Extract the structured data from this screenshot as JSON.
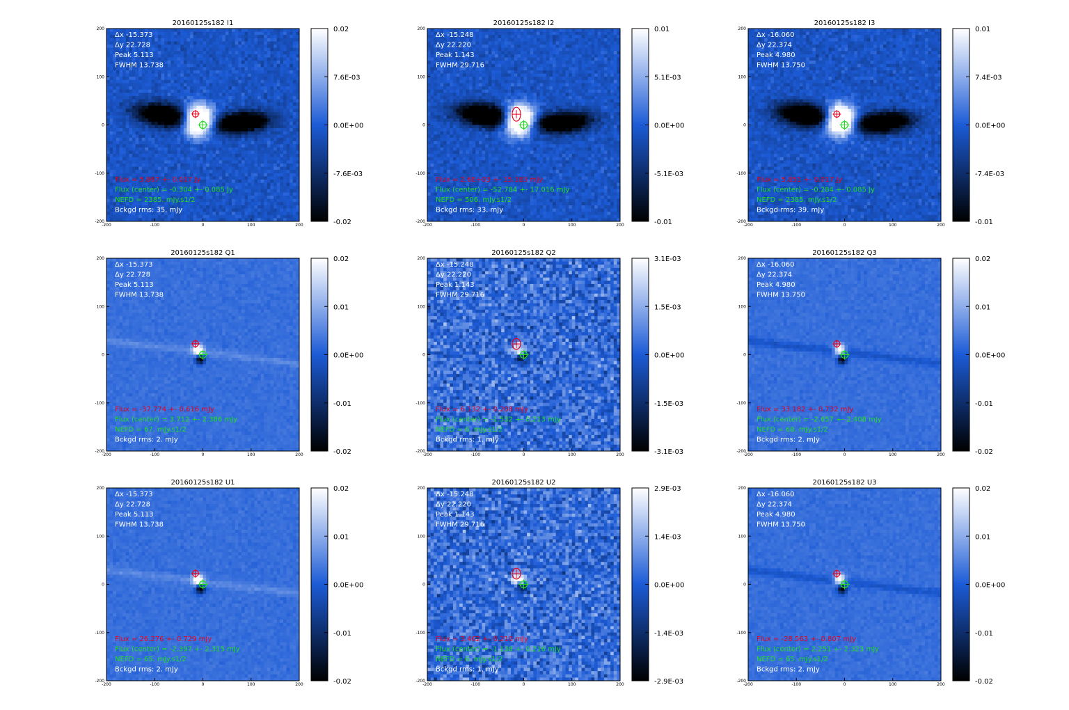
{
  "colormap": {
    "low": "#000000",
    "mid": "#1c5bd6",
    "high": "#ffffff"
  },
  "overlay_colors": {
    "label": "#ffffff",
    "flux": "#e8001c",
    "center": "#22dd22"
  },
  "axis": {
    "xticks": [
      "-200",
      "-100",
      "0",
      "100",
      "200"
    ],
    "yticks": [
      "200",
      "100",
      "0",
      "-100",
      "-200"
    ]
  },
  "chart_data": [
    {
      "type": "heatmap",
      "title": "20160125s182 I1",
      "xlim": [
        -200,
        200
      ],
      "ylim": [
        -200,
        200
      ],
      "colorbar": {
        "ticks": [
          "0.02",
          "7.6E-03",
          "0.0E+00",
          "-7.6E-03",
          "-0.02"
        ]
      },
      "stats": {
        "dx": "Δx  -15.373",
        "dy": "Δy  22.728",
        "peak": "Peak  5.113",
        "fwhm": "FWHM  13.738"
      },
      "flux": "Flux = 5.867 +- 0.017 Jy",
      "flux_center": "Flux (center) = -0.304 +- 0.085 Jy",
      "nefd": "NEFD      =   2385. mJy.s1/2",
      "bckgd": "Bckgd rms:   35. mJy",
      "pattern": "lobes",
      "red_marker": {
        "x": -15.4,
        "y": 22.7,
        "rx": 8,
        "ry": 8
      },
      "green_marker": {
        "x": 0,
        "y": 0
      }
    },
    {
      "type": "heatmap",
      "title": "20160125s182 I2",
      "xlim": [
        -200,
        200
      ],
      "ylim": [
        -200,
        200
      ],
      "colorbar": {
        "ticks": [
          "0.01",
          "5.1E-03",
          "0.0E+00",
          "-5.1E-03",
          "-0.01"
        ]
      },
      "stats": {
        "dx": "Δx  -15.248",
        "dy": "Δy  22.220",
        "peak": "Peak  1.143",
        "fwhm": "FWHM  29.716"
      },
      "flux": "Flux = 2.6E+03 +- 15.183 mJy",
      "flux_center": "Flux (center) = -52.784 +- 17.016 mJy",
      "nefd": "NEFD      =   506. mJy.s1/2",
      "bckgd": "Bckgd rms:   33. mJy",
      "pattern": "lobes",
      "red_marker": {
        "x": -15.2,
        "y": 22.2,
        "rx": 11,
        "ry": 18
      },
      "green_marker": {
        "x": 0,
        "y": 0
      }
    },
    {
      "type": "heatmap",
      "title": "20160125s182 I3",
      "xlim": [
        -200,
        200
      ],
      "ylim": [
        -200,
        200
      ],
      "colorbar": {
        "ticks": [
          "0.01",
          "7.4E-03",
          "0.0E+00",
          "-7.4E-03",
          "-0.01"
        ]
      },
      "stats": {
        "dx": "Δx  -16.060",
        "dy": "Δy  22.374",
        "peak": "Peak  4.980",
        "fwhm": "FWHM  13.750"
      },
      "flux": "Flux = 5.851 +- 0.017 Jy",
      "flux_center": "Flux (center) = -0.284 +- 0.085 Jy",
      "nefd": "NEFD      =   2385. mJy.s1/2",
      "bckgd": "Bckgd rms:   39. mJy",
      "pattern": "lobes",
      "red_marker": {
        "x": -16.1,
        "y": 22.4,
        "rx": 8,
        "ry": 8
      },
      "green_marker": {
        "x": 0,
        "y": 0
      }
    },
    {
      "type": "heatmap",
      "title": "20160125s182 Q1",
      "xlim": [
        -200,
        200
      ],
      "ylim": [
        -200,
        200
      ],
      "colorbar": {
        "ticks": [
          "0.02",
          "0.01",
          "0.0E+00",
          "-0.01",
          "-0.02"
        ]
      },
      "stats": {
        "dx": "Δx  -15.373",
        "dy": "Δy  22.728",
        "peak": "Peak  5.113",
        "fwhm": "FWHM  13.738"
      },
      "flux": "Flux = -37.774 +- 0.616 mJy",
      "flux_center": "Flux (center) = 3.712 +- 2.386 mJy",
      "nefd": "NEFD      =   67. mJy.s1/2",
      "bckgd": "Bckgd rms:   2. mJy",
      "pattern": "streak-light",
      "red_marker": {
        "x": -15.4,
        "y": 22.7,
        "rx": 8,
        "ry": 8
      },
      "green_marker": {
        "x": 0,
        "y": 0
      }
    },
    {
      "type": "heatmap",
      "title": "20160125s182 Q2",
      "xlim": [
        -200,
        200
      ],
      "ylim": [
        -200,
        200
      ],
      "colorbar": {
        "ticks": [
          "3.1E-03",
          "1.5E-03",
          "0.0E+00",
          "-1.5E-03",
          "-3.1E-03"
        ]
      },
      "stats": {
        "dx": "Δx  -15.248",
        "dy": "Δy  22.220",
        "peak": "Peak  1.143",
        "fwhm": "FWHM  29.716"
      },
      "flux": "Flux = 6.132 +- 0.208 mJy",
      "flux_center": "Flux (center) = -1.532 +- 0.213 mJy",
      "nefd": "NEFD      =   6. mJy.s1/2",
      "bckgd": "Bckgd rms:   1. mJy",
      "pattern": "noisy",
      "red_marker": {
        "x": -15.2,
        "y": 22.2,
        "rx": 11,
        "ry": 14
      },
      "green_marker": {
        "x": 0,
        "y": 0
      }
    },
    {
      "type": "heatmap",
      "title": "20160125s182 Q3",
      "xlim": [
        -200,
        200
      ],
      "ylim": [
        -200,
        200
      ],
      "colorbar": {
        "ticks": [
          "0.02",
          "0.01",
          "0.0E+00",
          "-0.01",
          "-0.02"
        ]
      },
      "stats": {
        "dx": "Δx  -16.060",
        "dy": "Δy  22.374",
        "peak": "Peak  4.980",
        "fwhm": "FWHM  13.750"
      },
      "flux": "Flux = 33.182 +- 0.732 mJy",
      "flux_center": "Flux (center) = -2.657 +- 2.408 mJy",
      "nefd": "NEFD      =   68. mJy.s1/2",
      "bckgd": "Bckgd rms:   2. mJy",
      "pattern": "streak-dark",
      "red_marker": {
        "x": -16.1,
        "y": 22.4,
        "rx": 8,
        "ry": 8
      },
      "green_marker": {
        "x": 0,
        "y": 0
      }
    },
    {
      "type": "heatmap",
      "title": "20160125s182 U1",
      "xlim": [
        -200,
        200
      ],
      "ylim": [
        -200,
        200
      ],
      "colorbar": {
        "ticks": [
          "0.02",
          "0.01",
          "0.0E+00",
          "-0.01",
          "-0.02"
        ]
      },
      "stats": {
        "dx": "Δx  -15.373",
        "dy": "Δy  22.728",
        "peak": "Peak  5.113",
        "fwhm": "FWHM  13.738"
      },
      "flux": "Flux = 26.276 +- 0.729 mJy",
      "flux_center": "Flux (center) = -2.397 +- 2.315 mJy",
      "nefd": "NEFD      =   65. mJy.s1/2",
      "bckgd": "Bckgd rms:   2. mJy",
      "pattern": "streak-light",
      "red_marker": {
        "x": -15.4,
        "y": 22.7,
        "rx": 8,
        "ry": 8
      },
      "green_marker": {
        "x": 0,
        "y": 0
      }
    },
    {
      "type": "heatmap",
      "title": "20160125s182 U2",
      "xlim": [
        -200,
        200
      ],
      "ylim": [
        -200,
        200
      ],
      "colorbar": {
        "ticks": [
          "2.9E-03",
          "1.4E-03",
          "0.0E+00",
          "-1.4E-03",
          "-2.9E-03"
        ]
      },
      "stats": {
        "dx": "Δx  -15.248",
        "dy": "Δy  22.220",
        "peak": "Peak  1.143",
        "fwhm": "FWHM  29.716"
      },
      "flux": "Flux = 3.462 +- 0.210 mJy",
      "flux_center": "Flux (center) = -1.138 +- 0.216 mJy",
      "nefd": "NEFD      =   6. mJy.s1/2",
      "bckgd": "Bckgd rms:   1. mJy",
      "pattern": "noisy",
      "red_marker": {
        "x": -15.2,
        "y": 22.2,
        "rx": 11,
        "ry": 14
      },
      "green_marker": {
        "x": 0,
        "y": 0
      }
    },
    {
      "type": "heatmap",
      "title": "20160125s182 U3",
      "xlim": [
        -200,
        200
      ],
      "ylim": [
        -200,
        200
      ],
      "colorbar": {
        "ticks": [
          "0.02",
          "0.01",
          "0.0E+00",
          "-0.01",
          "-0.02"
        ]
      },
      "stats": {
        "dx": "Δx  -16.060",
        "dy": "Δy  22.374",
        "peak": "Peak  4.980",
        "fwhm": "FWHM  13.750"
      },
      "flux": "Flux = -28.563 +- 0.807 mJy",
      "flux_center": "Flux (center) = 2.251 +- 2.323 mJy",
      "nefd": "NEFD      =   65. mJy.s1/2",
      "bckgd": "Bckgd rms:   2. mJy",
      "pattern": "streak-dark",
      "red_marker": {
        "x": -16.1,
        "y": 22.4,
        "rx": 8,
        "ry": 8
      },
      "green_marker": {
        "x": 0,
        "y": 0
      }
    }
  ]
}
